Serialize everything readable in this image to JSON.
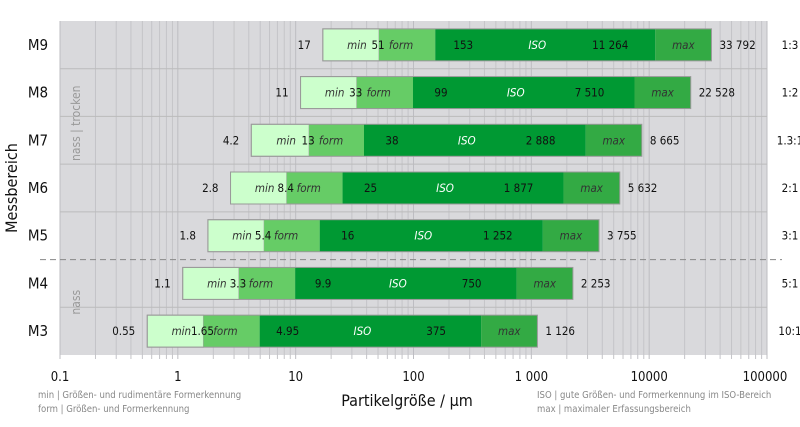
{
  "chart_data": {
    "type": "bar",
    "subtype": "horizontal-stacked-range",
    "xscale": "log",
    "xlim": [
      0.1,
      100000
    ],
    "xlabel": "Partikelgröße / µm",
    "ylabel": "Messbereich",
    "xticks": [
      "0.1",
      "1",
      "10",
      "100",
      "1 000",
      "10000",
      "100000"
    ],
    "xtick_values": [
      0.1,
      1,
      10,
      100,
      1000,
      10000,
      100000
    ],
    "grid": true,
    "segment_labels": [
      "min",
      "form",
      "ISO",
      "max"
    ],
    "segment_colors": [
      "#ccffcc",
      "#66cc66",
      "#009933",
      "#33aa44"
    ],
    "rows": [
      {
        "name": "M9",
        "bounds": [
          17,
          51,
          153,
          11264,
          33792
        ],
        "labels": [
          "17",
          "51",
          "153",
          "11 264",
          "33 792"
        ],
        "ratio": "1:3"
      },
      {
        "name": "M8",
        "bounds": [
          11,
          33,
          99,
          7510,
          22528
        ],
        "labels": [
          "11",
          "33",
          "99",
          "7 510",
          "22 528"
        ],
        "ratio": "1:2"
      },
      {
        "name": "M7",
        "bounds": [
          4.2,
          13,
          38,
          2888,
          8665
        ],
        "labels": [
          "4.2",
          "13",
          "38",
          "2 888",
          "8 665"
        ],
        "ratio": "1.3:1"
      },
      {
        "name": "M6",
        "bounds": [
          2.8,
          8.4,
          25,
          1877,
          5632
        ],
        "labels": [
          "2.8",
          "8.4",
          "25",
          "1 877",
          "5 632"
        ],
        "ratio": "2:1"
      },
      {
        "name": "M5",
        "bounds": [
          1.8,
          5.4,
          16,
          1252,
          3755
        ],
        "labels": [
          "1.8",
          "5.4",
          "16",
          "1 252",
          "3 755"
        ],
        "ratio": "3:1"
      },
      {
        "name": "M4",
        "bounds": [
          1.1,
          3.3,
          9.9,
          750,
          2253
        ],
        "labels": [
          "1.1",
          "3.3",
          "9.9",
          "750",
          "2 253"
        ],
        "ratio": "5:1"
      },
      {
        "name": "M3",
        "bounds": [
          0.55,
          1.65,
          4.95,
          375,
          1126
        ],
        "labels": [
          "0.55",
          "1.65",
          "4.95",
          "375",
          "1 126"
        ],
        "ratio": "10:1"
      }
    ],
    "groups": [
      {
        "label": "nass | trocken",
        "rows": [
          "M9",
          "M8",
          "M7",
          "M6",
          "M5"
        ]
      },
      {
        "label": "nass",
        "rows": [
          "M4",
          "M3"
        ]
      }
    ],
    "legend": [
      "min | Größen- und rudimentäre Formerkennung",
      "form | Größen- und Formerkennung",
      "ISO | gute Größen- und Formerkennung im ISO-Bereich",
      "max | maximaler Erfassungsbereich"
    ]
  },
  "colors": {
    "plot_bg": "#d9d9dc",
    "grid": "#c4c4c8"
  }
}
